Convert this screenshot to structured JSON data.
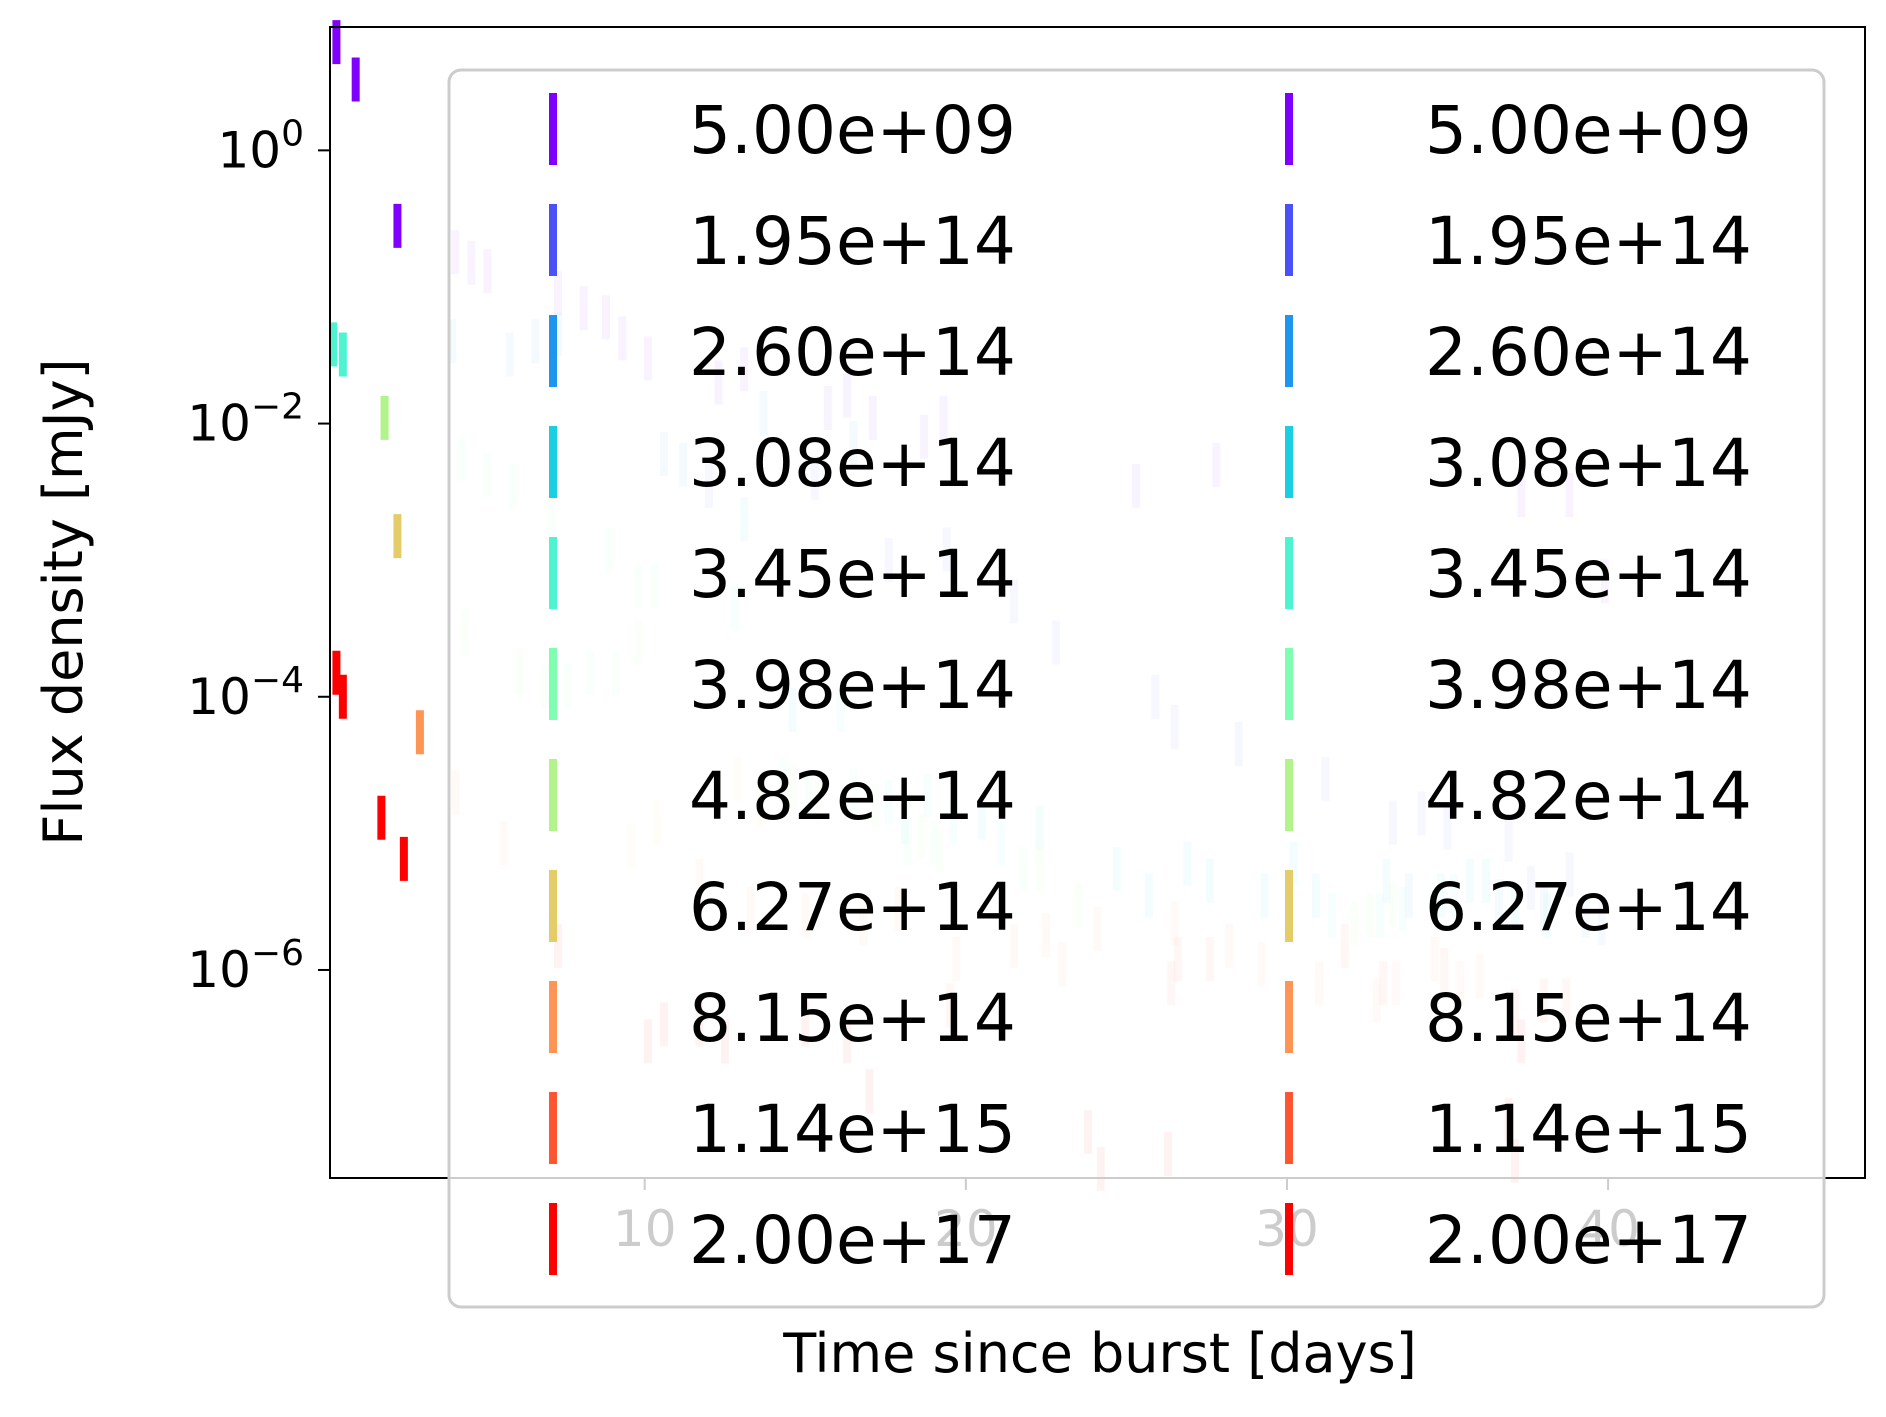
{
  "chart_data": {
    "type": "scatter",
    "marker": "vertical-line",
    "xlabel": "Time since burst [days]",
    "ylabel": "Flux density [mJy]",
    "xscale": "linear",
    "yscale": "log",
    "xlim": [
      0.2,
      48.0
    ],
    "ylim": [
      3e-08,
      8
    ],
    "x_ticks": [
      10,
      20,
      30,
      40
    ],
    "y_ticks": [
      {
        "value": 1,
        "base": "10",
        "exp": "0"
      },
      {
        "value": 0.01,
        "base": "10",
        "exp": "−2"
      },
      {
        "value": 0.0001,
        "base": "10",
        "exp": "−4"
      },
      {
        "value": 1e-06,
        "base": "10",
        "exp": "−6"
      }
    ],
    "grid": false,
    "legend": {
      "placement": "upper-right",
      "columns": 2,
      "entries": [
        "5.00e+09",
        "1.95e+14",
        "2.60e+14",
        "3.08e+14",
        "3.45e+14",
        "3.98e+14",
        "4.82e+14",
        "6.27e+14",
        "8.15e+14",
        "1.14e+15",
        "2.00e+17"
      ],
      "colors": [
        "#8000ff",
        "#4a52f7",
        "#1e96f0",
        "#1acfe4",
        "#4ef4d0",
        "#7ffeb2",
        "#b2f38c",
        "#e4cd69",
        "#ff9455",
        "#ff5533",
        "#ff0000"
      ]
    },
    "series": [
      {
        "legend_index": 0,
        "faded": false,
        "points": [
          [
            0.4,
            6.2
          ],
          [
            1.0,
            3.3
          ],
          [
            2.3,
            0.28
          ]
        ]
      },
      {
        "legend_index": 4,
        "faded": false,
        "points": [
          [
            0.3,
            0.038
          ],
          [
            0.6,
            0.032
          ]
        ]
      },
      {
        "legend_index": 6,
        "faded": false,
        "points": [
          [
            1.9,
            0.011
          ]
        ]
      },
      {
        "legend_index": 7,
        "faded": false,
        "points": [
          [
            2.3,
            0.0015
          ]
        ]
      },
      {
        "legend_index": 8,
        "faded": false,
        "points": [
          [
            3.0,
            5.5e-05
          ]
        ]
      },
      {
        "legend_index": 10,
        "faded": false,
        "points": [
          [
            0.4,
            0.00015
          ],
          [
            0.6,
            0.0001
          ],
          [
            1.8,
            1.3e-05
          ],
          [
            2.5,
            6.5e-06
          ]
        ]
      },
      {
        "legend_index": 0,
        "faded": true,
        "points": [
          [
            4.1,
            0.18
          ],
          [
            4.6,
            0.15
          ],
          [
            5.1,
            0.13
          ],
          [
            7.3,
            0.09
          ],
          [
            8.1,
            0.07
          ],
          [
            8.8,
            0.06
          ],
          [
            9.3,
            0.042
          ],
          [
            10.1,
            0.03
          ],
          [
            12.3,
            0.02
          ],
          [
            13.1,
            0.025
          ],
          [
            15.7,
            0.013
          ],
          [
            16.3,
            0.016
          ],
          [
            17.1,
            0.011
          ],
          [
            18.7,
            0.008
          ],
          [
            19.3,
            0.011
          ],
          [
            25.3,
            0.0035
          ],
          [
            27.8,
            0.005
          ],
          [
            37.3,
            0.003
          ],
          [
            38.8,
            0.003
          ],
          [
            39.9,
            0.0007
          ]
        ]
      },
      {
        "legend_index": 1,
        "faded": true,
        "points": [
          [
            12.0,
            0.0035
          ],
          [
            15.3,
            0.004
          ],
          [
            17.6,
            0.001
          ],
          [
            19.4,
            0.0012
          ],
          [
            21.5,
            0.0005
          ],
          [
            22.8,
            0.00025
          ],
          [
            25.9,
            0.0001
          ],
          [
            26.5,
            6e-05
          ],
          [
            28.5,
            4.5e-05
          ],
          [
            31.2,
            2.5e-05
          ],
          [
            33.3,
            1.2e-05
          ],
          [
            34.2,
            1.4e-05
          ],
          [
            35.0,
            1.1e-05
          ],
          [
            36.9,
            9e-06
          ],
          [
            37.6,
            4e-06
          ],
          [
            38.8,
            5e-06
          ]
        ]
      },
      {
        "legend_index": 2,
        "faded": true,
        "points": [
          [
            4.0,
            0.04
          ],
          [
            5.8,
            0.032
          ],
          [
            6.6,
            0.04
          ],
          [
            7.3,
            0.045
          ],
          [
            10.6,
            0.006
          ],
          [
            11.2,
            0.005
          ],
          [
            13.7,
            0.012
          ],
          [
            16.5,
            0.0072
          ],
          [
            33.8,
            3.5e-06
          ],
          [
            36.6,
            3.2e-06
          ],
          [
            38.0,
            2.8e-06
          ],
          [
            39.3,
            2.5e-06
          ],
          [
            39.8,
            2.2e-06
          ]
        ]
      },
      {
        "legend_index": 3,
        "faded": true,
        "points": [
          [
            13.1,
            0.002
          ],
          [
            14.6,
            8e-05
          ],
          [
            18.1,
            1.2e-05
          ],
          [
            20.5,
            1.3e-05
          ],
          [
            22.3,
            1.1e-05
          ],
          [
            24.7,
            5.5e-06
          ],
          [
            25.7,
            3.5e-06
          ],
          [
            26.9,
            6e-06
          ],
          [
            27.6,
            4.5e-06
          ],
          [
            29.3,
            3.5e-06
          ],
          [
            30.2,
            6e-06
          ],
          [
            30.9,
            3.5e-06
          ],
          [
            33.1,
            4.5e-06
          ],
          [
            34.8,
            3.5e-06
          ],
          [
            35.7,
            4.5e-06
          ],
          [
            36.2,
            4.5e-06
          ],
          [
            37.1,
            3e-06
          ],
          [
            38.1,
            2.5e-06
          ]
        ]
      },
      {
        "legend_index": 4,
        "faded": true,
        "points": [
          [
            12.8,
            0.00045
          ],
          [
            16.1,
            8e-05
          ],
          [
            17.6,
            1.7e-05
          ],
          [
            18.8,
            1.9e-05
          ],
          [
            19.6,
            1.2e-05
          ],
          [
            21.1,
            8.5e-06
          ],
          [
            31.4,
            2.5e-06
          ],
          [
            32.9,
            2.5e-06
          ],
          [
            33.6,
            2.8e-06
          ],
          [
            35.2,
            3.5e-06
          ]
        ]
      },
      {
        "legend_index": 5,
        "faded": true,
        "points": [
          [
            4.3,
            0.0055
          ],
          [
            5.1,
            0.0042
          ],
          [
            5.9,
            0.0035
          ],
          [
            7.1,
            0.0022
          ],
          [
            8.9,
            0.0012
          ],
          [
            9.8,
            0.00065
          ],
          [
            10.3,
            0.00065
          ],
          [
            7.6,
            0.00012
          ],
          [
            8.3,
            0.00015
          ],
          [
            9.1,
            0.00015
          ],
          [
            14.3,
            2.5e-05
          ],
          [
            15.1,
            1.9e-05
          ],
          [
            16.5,
            2.1e-05
          ],
          [
            18.2,
            8.5e-06
          ],
          [
            19.0,
            8.5e-06
          ],
          [
            21.8,
            5.5e-06
          ]
        ]
      },
      {
        "legend_index": 6,
        "faded": true,
        "points": [
          [
            4.4,
            0.0003
          ],
          [
            6.1,
            0.00015
          ],
          [
            6.9,
            0.00012
          ],
          [
            9.8,
            0.00025
          ],
          [
            14.6,
            2.2e-05
          ],
          [
            15.4,
            1.7e-05
          ],
          [
            17.2,
            1.6e-05
          ],
          [
            18.6,
            9.5e-06
          ],
          [
            19.2,
            7.5e-06
          ],
          [
            22.3,
            5.5e-06
          ],
          [
            23.5,
            3e-06
          ],
          [
            32.1,
            2.2e-06
          ],
          [
            32.6,
            2.5e-06
          ],
          [
            33.3,
            3e-06
          ]
        ]
      },
      {
        "legend_index": 7,
        "faded": true,
        "points": [
          [
            9.6,
            8e-06
          ],
          [
            10.4,
            1.2e-05
          ],
          [
            12.9,
            2.5e-05
          ],
          [
            13.6,
            1.6e-05
          ]
        ]
      },
      {
        "legend_index": 8,
        "faded": true,
        "points": [
          [
            4.1,
            2e-05
          ],
          [
            5.6,
            8.5e-06
          ],
          [
            11.7,
            4.5e-06
          ],
          [
            13.3,
            2.8e-06
          ],
          [
            15.0,
            2.5e-06
          ],
          [
            16.8,
            2.2e-06
          ],
          [
            17.9,
            2.8e-06
          ],
          [
            19.7,
            1.2e-06
          ],
          [
            21.5,
            1.5e-06
          ],
          [
            22.5,
            1.8e-06
          ],
          [
            23.0,
            1.1e-06
          ],
          [
            24.1,
            2e-06
          ],
          [
            26.5,
            2.2e-06
          ],
          [
            28.2,
            1.5e-06
          ],
          [
            29.2,
            1.1e-06
          ],
          [
            31.0,
            8e-07
          ],
          [
            32.8,
            6e-07
          ],
          [
            33.4,
            8e-07
          ],
          [
            34.6,
            1.2e-06
          ],
          [
            35.4,
            8e-07
          ],
          [
            36.0,
            9e-07
          ]
        ]
      },
      {
        "legend_index": 9,
        "faded": true,
        "points": [
          [
            19.5,
            5.5e-07
          ],
          [
            26.4,
            8e-07
          ],
          [
            26.6,
            1.2e-06
          ],
          [
            27.6,
            1.2e-06
          ],
          [
            31.8,
            1.5e-06
          ],
          [
            33.0,
            8e-07
          ],
          [
            34.9,
            1e-06
          ],
          [
            37.1,
            5e-07
          ],
          [
            38.0,
            6e-07
          ],
          [
            38.7,
            6e-07
          ]
        ]
      },
      {
        "legend_index": 10,
        "faded": true,
        "points": [
          [
            7.3,
            1.5e-06
          ],
          [
            10.1,
            3e-07
          ],
          [
            10.6,
            4e-07
          ],
          [
            11.7,
            4e-07
          ],
          [
            12.5,
            3e-07
          ],
          [
            15.0,
            4e-07
          ],
          [
            17.0,
            1.3e-07
          ],
          [
            16.3,
            3e-07
          ],
          [
            23.8,
            6.5e-08
          ],
          [
            24.2,
            3.5e-08
          ],
          [
            26.3,
            4.5e-08
          ],
          [
            36.9,
            8e-08
          ],
          [
            37.1,
            4e-08
          ],
          [
            37.3,
            3e-07
          ]
        ]
      }
    ]
  }
}
